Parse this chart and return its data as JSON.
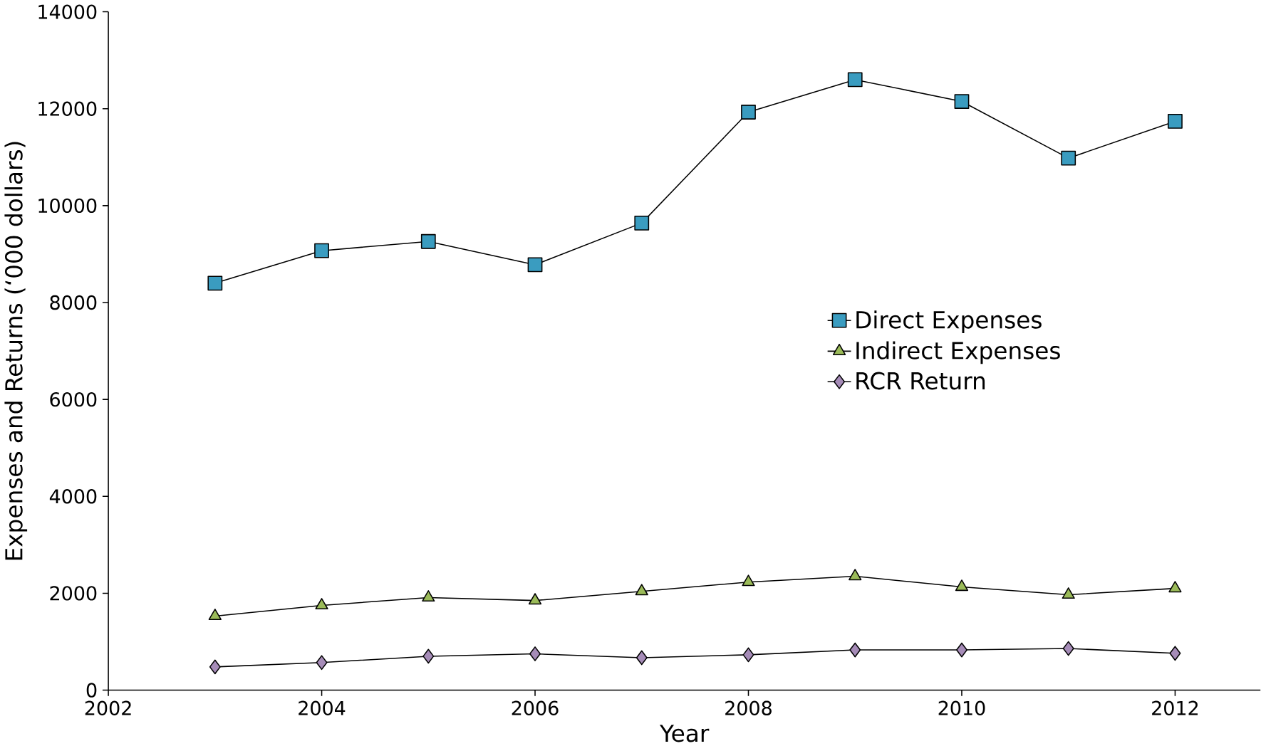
{
  "chart_data": {
    "type": "line",
    "xlabel": "Year",
    "ylabel": "Expenses and Returns (‘000 dollars)",
    "x": [
      2003,
      2004,
      2005,
      2006,
      2007,
      2008,
      2009,
      2010,
      2011,
      2012
    ],
    "series": [
      {
        "name": "Direct Expenses",
        "color": "#3a9cc0",
        "marker": "square",
        "values": [
          8400,
          9070,
          9260,
          8780,
          9640,
          11930,
          12600,
          12150,
          10980,
          11740
        ]
      },
      {
        "name": "Indirect Expenses",
        "color": "#9bbb59",
        "marker": "triangle",
        "values": [
          1530,
          1750,
          1910,
          1850,
          2040,
          2230,
          2350,
          2130,
          1970,
          2100
        ]
      },
      {
        "name": "RCR Return",
        "color": "#a68cb8",
        "marker": "diamond",
        "values": [
          480,
          570,
          700,
          750,
          670,
          730,
          830,
          830,
          860,
          760
        ]
      }
    ],
    "xlim": [
      2002,
      2012.8
    ],
    "xticks": [
      2002,
      2004,
      2006,
      2008,
      2010,
      2012
    ],
    "ylim": [
      0,
      14000
    ],
    "yticks": [
      0,
      2000,
      4000,
      6000,
      8000,
      10000,
      12000,
      14000
    ],
    "legend": "right",
    "grid": false,
    "line_style": "solid"
  }
}
